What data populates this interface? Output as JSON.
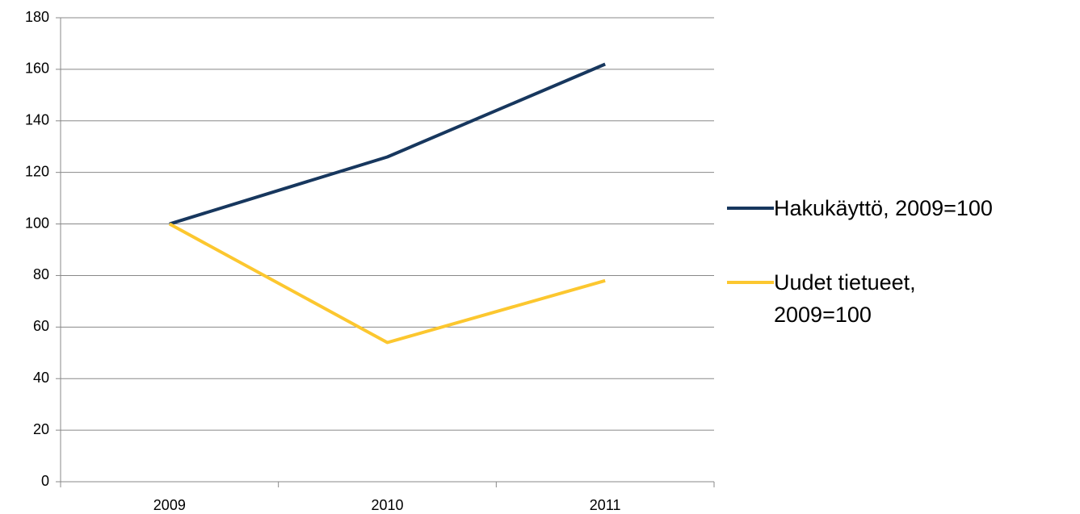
{
  "chart_data": {
    "type": "line",
    "categories": [
      "2009",
      "2010",
      "2011"
    ],
    "series": [
      {
        "name": "Hakukäyttö, 2009=100",
        "color": "#17375e",
        "values": [
          100,
          126,
          162
        ]
      },
      {
        "name": "Uudet tietueet, 2009=100",
        "color": "#fcc72f",
        "values": [
          100,
          54,
          78
        ]
      }
    ],
    "ylim": [
      0,
      180
    ],
    "yticks": [
      0,
      20,
      40,
      60,
      80,
      100,
      120,
      140,
      160,
      180
    ],
    "grid": true,
    "legend": "right"
  }
}
